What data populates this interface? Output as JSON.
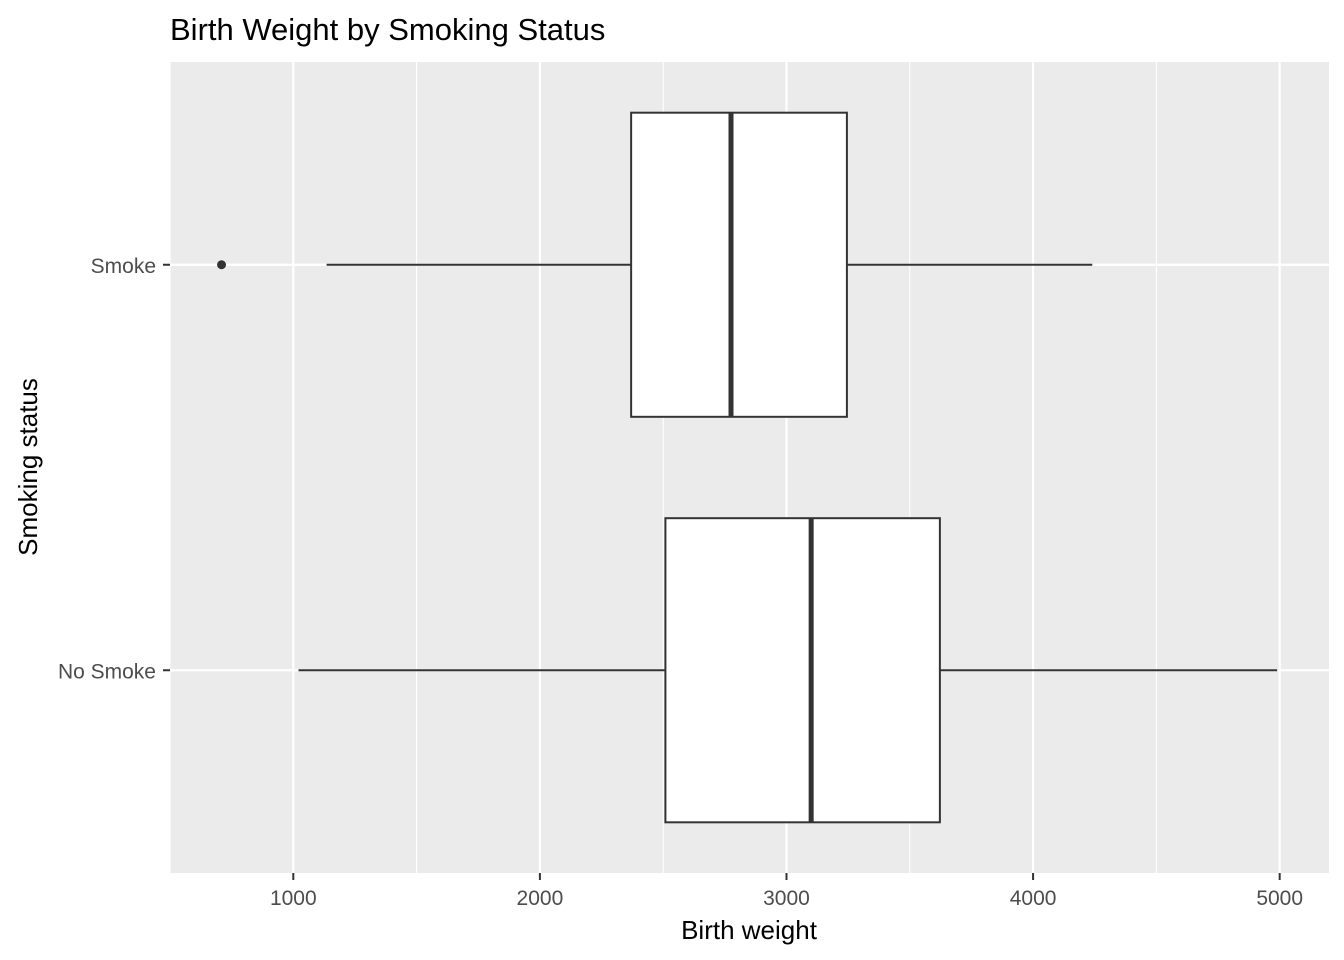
{
  "chart_data": {
    "type": "boxplot",
    "orientation": "horizontal",
    "title": "Birth Weight by Smoking Status",
    "xlabel": "Birth weight",
    "ylabel": "Smoking status",
    "xlim": [
      500,
      5200
    ],
    "x_ticks": [
      1000,
      2000,
      3000,
      4000,
      5000
    ],
    "categories": [
      "Smoke",
      "No Smoke"
    ],
    "boxes": [
      {
        "category": "Smoke",
        "whisker_low": 1135,
        "q1": 2370,
        "median": 2775,
        "q3": 3245,
        "whisker_high": 4240,
        "outliers": [
          709
        ]
      },
      {
        "category": "No Smoke",
        "whisker_low": 1021,
        "q1": 2509,
        "median": 3100,
        "q3": 3622,
        "whisker_high": 4990,
        "outliers": []
      }
    ],
    "grid": true,
    "colors": {
      "panel": "#ebebeb",
      "grid": "#ffffff",
      "box_fill": "#ffffff",
      "box_line": "#333333"
    }
  }
}
